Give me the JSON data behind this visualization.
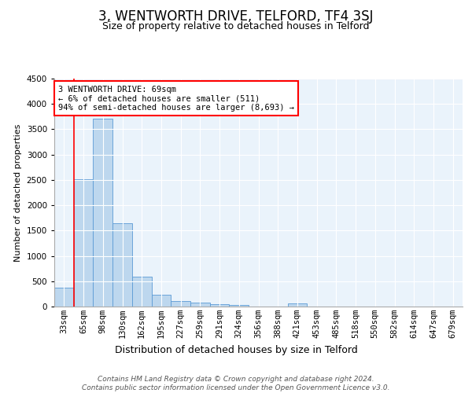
{
  "title": "3, WENTWORTH DRIVE, TELFORD, TF4 3SJ",
  "subtitle": "Size of property relative to detached houses in Telford",
  "xlabel": "Distribution of detached houses by size in Telford",
  "ylabel": "Number of detached properties",
  "categories": [
    "33sqm",
    "65sqm",
    "98sqm",
    "130sqm",
    "162sqm",
    "195sqm",
    "227sqm",
    "259sqm",
    "291sqm",
    "324sqm",
    "356sqm",
    "388sqm",
    "421sqm",
    "453sqm",
    "485sqm",
    "518sqm",
    "550sqm",
    "582sqm",
    "614sqm",
    "647sqm",
    "679sqm"
  ],
  "values": [
    370,
    2510,
    3710,
    1640,
    590,
    230,
    110,
    70,
    50,
    30,
    0,
    0,
    60,
    0,
    0,
    0,
    0,
    0,
    0,
    0,
    0
  ],
  "bar_color": "#bdd7ee",
  "bar_edge_color": "#5b9bd5",
  "annotation_text_line1": "3 WENTWORTH DRIVE: 69sqm",
  "annotation_text_line2": "← 6% of detached houses are smaller (511)",
  "annotation_text_line3": "94% of semi-detached houses are larger (8,693) →",
  "annotation_box_color": "white",
  "annotation_box_edge": "red",
  "vline_color": "red",
  "vline_x": 0.5,
  "ylim": [
    0,
    4500
  ],
  "yticks": [
    0,
    500,
    1000,
    1500,
    2000,
    2500,
    3000,
    3500,
    4000,
    4500
  ],
  "footer_line1": "Contains HM Land Registry data © Crown copyright and database right 2024.",
  "footer_line2": "Contains public sector information licensed under the Open Government Licence v3.0.",
  "bg_color": "#eaf3fb",
  "fig_bg_color": "#ffffff",
  "title_fontsize": 12,
  "subtitle_fontsize": 9,
  "xlabel_fontsize": 9,
  "ylabel_fontsize": 8,
  "tick_fontsize": 7.5,
  "annotation_fontsize": 7.5,
  "footer_fontsize": 6.5
}
